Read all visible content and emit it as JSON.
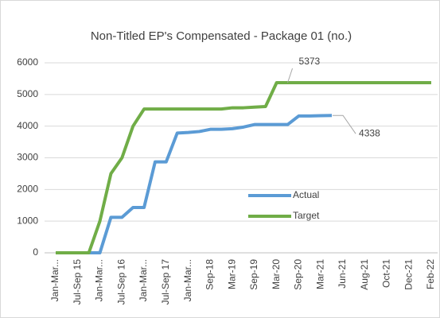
{
  "chart_data": {
    "type": "line",
    "title": "Non-Titled EP's Compensated - Package 01 (no.)",
    "categories": [
      "Jan-Mar...",
      null,
      "Jul-Sep 15",
      null,
      "Jan-Mar...",
      null,
      "Jul-Sep 16",
      null,
      "Jan-Mar...",
      null,
      "Jul-Sep 17",
      null,
      "Jan-Mar...",
      null,
      "Sep-18",
      null,
      "Mar-19",
      null,
      "Sep-19",
      null,
      "Mar-20",
      null,
      "Sep-20",
      null,
      "Mar-21",
      null,
      "Jun-21",
      null,
      "Aug-21",
      null,
      "Oct-21",
      null,
      "Dec-21",
      null,
      "Feb-22"
    ],
    "series": [
      {
        "name": "Actual",
        "color": "#5b9bd5",
        "values": [
          0,
          0,
          0,
          0,
          0,
          1120,
          1120,
          1430,
          1430,
          2870,
          2870,
          3780,
          3800,
          3830,
          3900,
          3900,
          3920,
          3970,
          4050,
          4050,
          4050,
          4050,
          4320,
          4320,
          4330,
          4338,
          null,
          null,
          null,
          null,
          null,
          null,
          null,
          null,
          null
        ],
        "value_labels": [
          null,
          null,
          null,
          null,
          null,
          null,
          null,
          null,
          null,
          null,
          null,
          null,
          null,
          null,
          null,
          null,
          null,
          null,
          null,
          null,
          null,
          null,
          null,
          null,
          null,
          "4338",
          null,
          null,
          null,
          null,
          null,
          null,
          null,
          null,
          null
        ]
      },
      {
        "name": "Target",
        "color": "#70ad47",
        "values": [
          0,
          0,
          0,
          0,
          1000,
          2500,
          3000,
          4000,
          4540,
          4540,
          4540,
          4540,
          4540,
          4540,
          4540,
          4540,
          4580,
          4580,
          4600,
          4620,
          5373,
          5373,
          5373,
          5373,
          5373,
          5373,
          5373,
          5373,
          5373,
          5373,
          5373,
          5373,
          5373,
          5373,
          5373
        ],
        "value_labels": [
          null,
          null,
          null,
          null,
          null,
          null,
          null,
          null,
          null,
          null,
          null,
          null,
          null,
          null,
          null,
          null,
          null,
          null,
          null,
          null,
          null,
          "5373",
          null,
          null,
          null,
          null,
          null,
          null,
          null,
          null,
          null,
          null,
          null,
          null,
          null
        ]
      }
    ],
    "ylim": [
      0,
      6000
    ],
    "yticks": [
      0,
      1000,
      2000,
      3000,
      4000,
      5000,
      6000
    ],
    "grid": true,
    "legend": "right"
  }
}
